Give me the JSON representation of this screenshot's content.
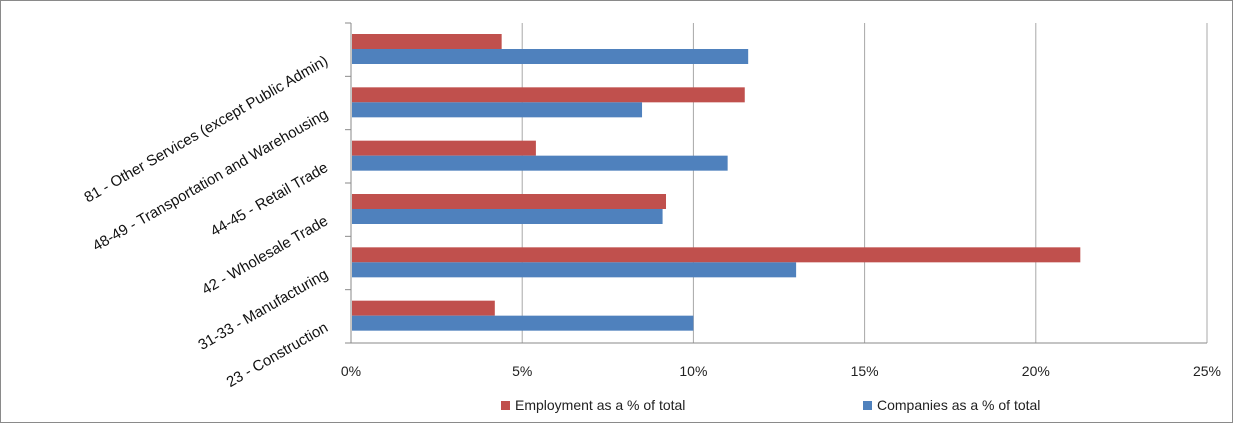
{
  "chart_data": {
    "type": "bar",
    "orientation": "horizontal",
    "categories": [
      "81 - Other Services (except Public Admin)",
      "48-49 - Transportation and Warehousing",
      "44-45 - Retail Trade",
      "42 - Wholesale Trade",
      "31-33 - Manufacturing",
      "23 - Construction"
    ],
    "series": [
      {
        "name": "Employment as a % of total",
        "color": "#C0504D",
        "values": [
          4.4,
          11.5,
          5.4,
          9.2,
          21.3,
          4.2
        ]
      },
      {
        "name": "Companies as a % of total",
        "color": "#4F81BD",
        "values": [
          11.6,
          8.5,
          11.0,
          9.1,
          13.0,
          10.0
        ]
      }
    ],
    "xlim": [
      0,
      25
    ],
    "xticks": [
      "0%",
      "5%",
      "10%",
      "15%",
      "20%",
      "25%"
    ],
    "grid": true,
    "legend": "bottom"
  }
}
